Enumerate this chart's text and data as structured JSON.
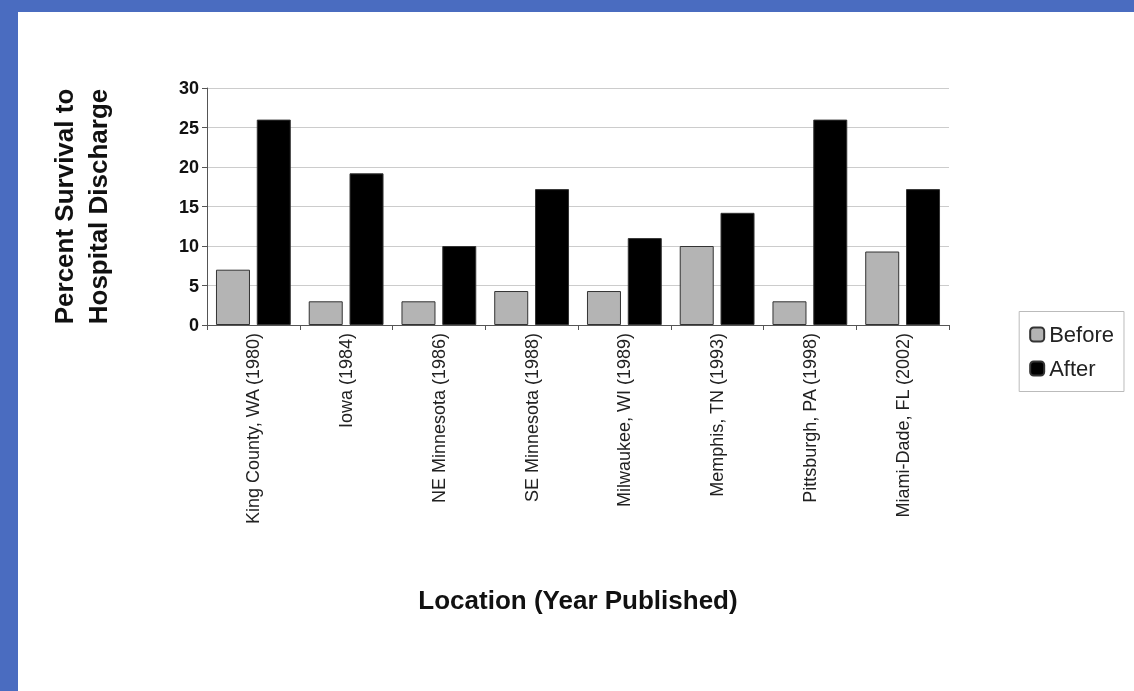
{
  "chart_data": {
    "type": "bar",
    "xlabel": "Location (Year Published)",
    "ylabel": "Percent Survival to\nHospital Discharge",
    "categories": [
      "King County, WA (1980)",
      "Iowa (1984)",
      "NE Minnesota (1986)",
      "SE Minnesota (1988)",
      "Milwaukee, WI (1989)",
      "Memphis, TN (1993)",
      "Pittsburgh, PA (1998)",
      "Miami-Dade, FL (2002)"
    ],
    "series": [
      {
        "name": "Before",
        "color": "#b4b4b4",
        "values": [
          7,
          3,
          3,
          4.3,
          4.3,
          10,
          3,
          9.3
        ]
      },
      {
        "name": "After",
        "color": "#000000",
        "values": [
          26,
          19.2,
          10,
          17.2,
          11,
          14.2,
          26,
          17.2
        ]
      }
    ],
    "ylim": [
      0,
      30
    ],
    "yticks": [
      0,
      5,
      10,
      15,
      20,
      25,
      30
    ],
    "grid": "y",
    "legend": "right"
  }
}
